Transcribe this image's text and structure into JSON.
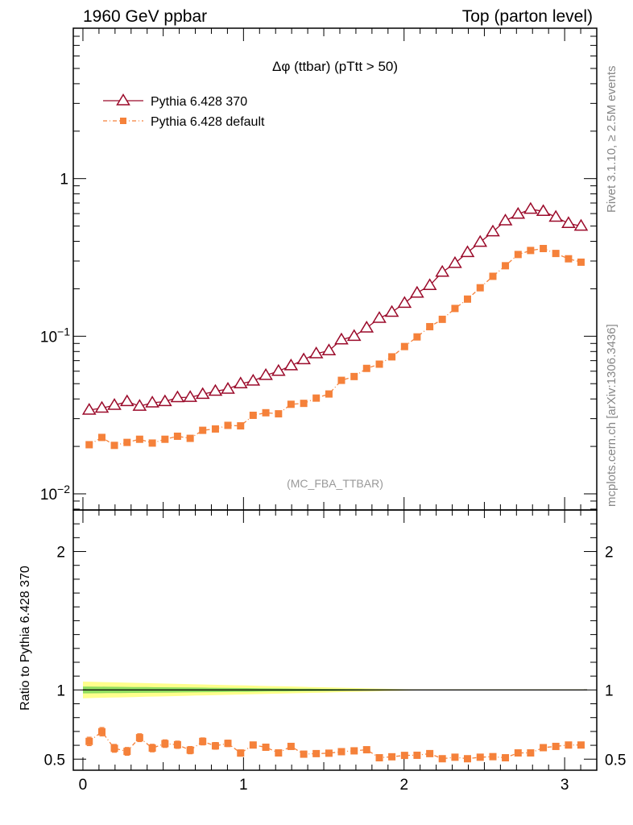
{
  "header": {
    "left": "1960 GeV ppbar",
    "right": "Top (parton level)"
  },
  "side_labels": {
    "rivet": "Rivet 3.1.10, ≥ 2.5M events",
    "mcplots": "mcplots.cern.ch [arXiv:1306.3436]"
  },
  "chart_data": [
    {
      "type": "line",
      "title": "Δφ (ttbar) (pTtt > 50)",
      "watermark": "(MC_FBA_TTBAR)",
      "xlabel": "",
      "ylabel": "",
      "yscale": "log",
      "xlim": [
        -0.06,
        3.2
      ],
      "ylim": [
        0.0079,
        9.0
      ],
      "y_ticks": [
        {
          "value": 0.01,
          "label": "10",
          "exp": "−2"
        },
        {
          "value": 0.1,
          "label": "10",
          "exp": "−1"
        },
        {
          "value": 1,
          "label": "1",
          "exp": ""
        }
      ],
      "legend_position": "top-left",
      "x": [
        0.039,
        0.118,
        0.196,
        0.275,
        0.353,
        0.432,
        0.511,
        0.589,
        0.668,
        0.746,
        0.825,
        0.903,
        0.982,
        1.06,
        1.139,
        1.218,
        1.296,
        1.375,
        1.453,
        1.532,
        1.61,
        1.689,
        1.767,
        1.846,
        1.924,
        2.003,
        2.081,
        2.16,
        2.238,
        2.317,
        2.395,
        2.474,
        2.553,
        2.631,
        2.71,
        2.788,
        2.867,
        2.945,
        3.024,
        3.102
      ],
      "series": [
        {
          "name": "Pythia 6.428 370",
          "color": "#9b0a2a",
          "marker": "open-triangle",
          "values": [
            0.034,
            0.035,
            0.0365,
            0.0385,
            0.036,
            0.0378,
            0.0385,
            0.0408,
            0.041,
            0.0428,
            0.0448,
            0.0462,
            0.05,
            0.052,
            0.0565,
            0.06,
            0.065,
            0.071,
            0.0775,
            0.081,
            0.095,
            0.1,
            0.113,
            0.13,
            0.142,
            0.162,
            0.188,
            0.21,
            0.255,
            0.29,
            0.34,
            0.395,
            0.46,
            0.54,
            0.595,
            0.64,
            0.62,
            0.57,
            0.52,
            0.5
          ]
        },
        {
          "name": "Pythia 6.428 default",
          "color": "#f5813a",
          "marker": "filled-square",
          "values": [
            0.0205,
            0.0228,
            0.0203,
            0.0212,
            0.0222,
            0.021,
            0.0222,
            0.0232,
            0.0225,
            0.0253,
            0.0258,
            0.0272,
            0.027,
            0.0315,
            0.0327,
            0.0322,
            0.037,
            0.0375,
            0.0405,
            0.043,
            0.0525,
            0.0555,
            0.0625,
            0.0665,
            0.074,
            0.086,
            0.099,
            0.115,
            0.128,
            0.15,
            0.172,
            0.203,
            0.24,
            0.28,
            0.33,
            0.35,
            0.36,
            0.335,
            0.31,
            0.295
          ]
        }
      ]
    },
    {
      "type": "line",
      "title": "",
      "xlabel": "",
      "ylabel": "Ratio to Pythia 6.428 370",
      "yscale": "linear",
      "xlim": [
        -0.06,
        3.2
      ],
      "ylim": [
        0.42,
        2.3
      ],
      "y_ticks": [
        0.5,
        1,
        2
      ],
      "x_ticks": [
        0,
        1,
        2,
        3
      ],
      "reference_band": {
        "name": "Pythia 6.428 370",
        "center": 1.0,
        "inner_color": "#8fdc5f",
        "outer_color": "#ffff8c",
        "inner_halfwidth_start": 0.025,
        "outer_halfwidth_start": 0.06
      },
      "series": [
        {
          "name": "Pythia 6.428 default",
          "color": "#f5813a",
          "marker": "filled-square",
          "values": [
            0.628,
            0.698,
            0.578,
            0.556,
            0.655,
            0.58,
            0.612,
            0.604,
            0.565,
            0.628,
            0.596,
            0.614,
            0.544,
            0.602,
            0.586,
            0.545,
            0.592,
            0.536,
            0.54,
            0.543,
            0.554,
            0.56,
            0.568,
            0.51,
            0.517,
            0.527,
            0.528,
            0.54,
            0.503,
            0.514,
            0.503,
            0.514,
            0.518,
            0.51,
            0.545,
            0.545,
            0.583,
            0.592,
            0.602,
            0.602
          ],
          "errors": [
            0.03,
            0.03,
            0.028,
            0.028,
            0.028,
            0.027,
            0.027,
            0.026,
            0.026,
            0.025,
            0.024,
            0.023,
            0.022,
            0.021,
            0.02,
            0.019,
            0.018,
            0.017,
            0.016,
            0.015,
            0.014,
            0.014,
            0.013,
            0.012,
            0.012,
            0.011,
            0.01,
            0.01,
            0.009,
            0.009,
            0.008,
            0.008,
            0.008,
            0.007,
            0.007,
            0.007,
            0.007,
            0.007,
            0.007,
            0.007
          ]
        }
      ]
    }
  ]
}
